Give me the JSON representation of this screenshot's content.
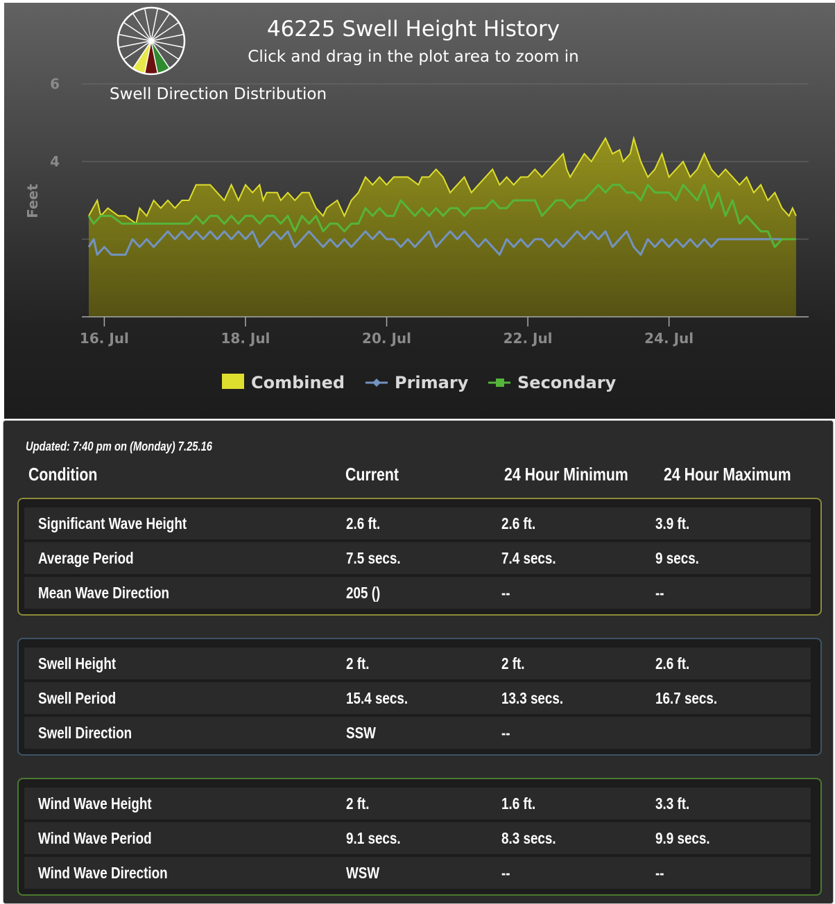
{
  "chart_data": {
    "type": "area",
    "title": "46225 Swell Height History",
    "subtitle": "Click and drag in the plot area to zoom in",
    "ylabel": "Feet",
    "ylim": [
      0,
      6
    ],
    "y_tick_labels": [
      "4",
      "6"
    ],
    "x_tick_labels": [
      "16. Jul",
      "18. Jul",
      "20. Jul",
      "22. Jul",
      "24. Jul"
    ],
    "x_ticks_day": [
      16,
      18,
      20,
      22,
      24
    ],
    "xlim_day": [
      15.78,
      25.88
    ],
    "legend": "bottom-center",
    "grid": true,
    "inset_title": "Swell Direction Distribution",
    "series": [
      {
        "name": "Combined",
        "type": "area",
        "color": "#dede2e",
        "x": [
          15.78,
          15.9,
          15.95,
          16.05,
          16.2,
          16.3,
          16.45,
          16.5,
          16.6,
          16.7,
          16.8,
          16.9,
          17.0,
          17.1,
          17.2,
          17.3,
          17.35,
          17.5,
          17.6,
          17.7,
          17.8,
          17.9,
          18.0,
          18.1,
          18.2,
          18.25,
          18.3,
          18.45,
          18.5,
          18.6,
          18.7,
          18.8,
          18.9,
          19.0,
          19.1,
          19.15,
          19.3,
          19.4,
          19.5,
          19.6,
          19.7,
          19.8,
          19.9,
          20.0,
          20.1,
          20.2,
          20.3,
          20.45,
          20.5,
          20.6,
          20.7,
          20.8,
          20.9,
          21.0,
          21.1,
          21.2,
          21.3,
          21.4,
          21.5,
          21.6,
          21.7,
          21.8,
          21.9,
          22.0,
          22.1,
          22.2,
          22.3,
          22.4,
          22.5,
          22.55,
          22.6,
          22.7,
          22.8,
          22.9,
          23.0,
          23.1,
          23.2,
          23.3,
          23.35,
          23.45,
          23.5,
          23.6,
          23.7,
          23.8,
          23.9,
          24.0,
          24.1,
          24.2,
          24.3,
          24.4,
          24.5,
          24.6,
          24.7,
          24.8,
          24.9,
          25.0,
          25.1,
          25.2,
          25.3,
          25.4,
          25.5,
          25.6,
          25.7,
          25.75,
          25.8
        ],
        "y": [
          2.6,
          3.0,
          2.6,
          2.8,
          2.6,
          2.6,
          2.4,
          2.8,
          2.6,
          3.0,
          2.8,
          3.0,
          2.8,
          3.0,
          3.0,
          3.4,
          3.4,
          3.4,
          3.2,
          3.0,
          3.4,
          3.0,
          3.4,
          3.2,
          3.4,
          3.0,
          3.2,
          3.2,
          3.0,
          3.2,
          3.0,
          3.2,
          3.2,
          2.8,
          2.6,
          2.8,
          3.0,
          2.6,
          3.0,
          3.2,
          3.6,
          3.4,
          3.6,
          3.4,
          3.6,
          3.6,
          3.6,
          3.4,
          3.6,
          3.6,
          3.8,
          3.6,
          3.2,
          3.4,
          3.6,
          3.2,
          3.4,
          3.6,
          3.8,
          3.4,
          3.6,
          3.4,
          3.6,
          3.6,
          3.8,
          3.6,
          3.8,
          4.0,
          4.2,
          3.8,
          3.6,
          3.9,
          4.2,
          4.0,
          4.3,
          4.6,
          4.2,
          4.3,
          4.0,
          4.2,
          4.6,
          4.0,
          3.6,
          3.8,
          4.2,
          3.6,
          3.8,
          4.0,
          3.6,
          3.8,
          4.2,
          3.8,
          3.6,
          3.8,
          3.6,
          3.4,
          3.6,
          3.2,
          3.4,
          3.0,
          3.2,
          2.8,
          2.6,
          2.8,
          2.6
        ]
      },
      {
        "name": "Primary",
        "type": "line",
        "color": "#7393c1",
        "x": [
          15.78,
          15.85,
          15.9,
          16.0,
          16.1,
          16.3,
          16.4,
          16.5,
          16.6,
          16.7,
          16.8,
          16.9,
          17.0,
          17.1,
          17.2,
          17.3,
          17.4,
          17.5,
          17.6,
          17.7,
          17.8,
          17.9,
          18.0,
          18.1,
          18.2,
          18.3,
          18.4,
          18.5,
          18.6,
          18.7,
          18.8,
          18.9,
          19.0,
          19.1,
          19.2,
          19.3,
          19.4,
          19.5,
          19.6,
          19.7,
          19.8,
          19.9,
          20.0,
          20.1,
          20.2,
          20.3,
          20.4,
          20.5,
          20.6,
          20.7,
          20.8,
          20.9,
          21.0,
          21.1,
          21.2,
          21.3,
          21.4,
          21.5,
          21.6,
          21.7,
          21.8,
          21.9,
          22.0,
          22.1,
          22.2,
          22.3,
          22.4,
          22.5,
          22.6,
          22.7,
          22.8,
          22.9,
          23.0,
          23.1,
          23.2,
          23.3,
          23.4,
          23.5,
          23.6,
          23.7,
          23.8,
          23.9,
          24.0,
          24.1,
          24.2,
          24.3,
          24.4,
          24.5,
          24.6,
          24.7,
          24.8,
          24.9,
          25.0,
          25.1,
          25.2,
          25.3,
          25.4,
          25.5,
          25.6,
          25.8
        ],
        "y": [
          1.8,
          2.0,
          1.6,
          1.8,
          1.6,
          1.6,
          2.0,
          1.8,
          2.0,
          1.8,
          2.0,
          2.2,
          2.0,
          2.2,
          2.0,
          2.2,
          2.0,
          2.2,
          2.0,
          2.2,
          2.0,
          2.2,
          2.0,
          2.2,
          1.8,
          2.0,
          2.2,
          2.0,
          2.2,
          1.8,
          2.0,
          2.2,
          2.0,
          1.8,
          2.0,
          1.8,
          2.0,
          1.8,
          2.0,
          2.2,
          2.0,
          2.2,
          2.0,
          2.0,
          1.8,
          2.0,
          1.8,
          2.0,
          2.2,
          1.8,
          2.0,
          2.2,
          2.0,
          2.2,
          2.0,
          1.8,
          2.0,
          1.8,
          1.6,
          2.0,
          1.8,
          2.0,
          1.8,
          2.0,
          2.0,
          1.8,
          2.0,
          1.8,
          2.0,
          2.2,
          2.0,
          2.2,
          2.0,
          2.2,
          1.8,
          2.0,
          2.2,
          1.8,
          1.6,
          2.0,
          1.8,
          2.0,
          1.8,
          2.0,
          1.8,
          2.0,
          1.8,
          2.0,
          1.8,
          2.0,
          2.0,
          2.0,
          2.0,
          2.0,
          2.0,
          2.0,
          2.0,
          2.0,
          2.0,
          2.0
        ]
      },
      {
        "name": "Secondary",
        "type": "line",
        "color": "#55b53a",
        "x": [
          15.78,
          15.85,
          15.95,
          16.1,
          16.25,
          16.4,
          16.5,
          16.8,
          17.0,
          17.1,
          17.2,
          17.3,
          17.4,
          17.5,
          17.6,
          17.7,
          17.8,
          17.9,
          18.0,
          18.1,
          18.2,
          18.3,
          18.4,
          18.5,
          18.6,
          18.7,
          18.8,
          18.9,
          19.0,
          19.1,
          19.2,
          19.3,
          19.4,
          19.5,
          19.6,
          19.7,
          19.8,
          19.9,
          20.0,
          20.1,
          20.2,
          20.3,
          20.4,
          20.5,
          20.6,
          20.7,
          20.8,
          20.9,
          21.0,
          21.1,
          21.2,
          21.3,
          21.4,
          21.5,
          21.6,
          21.7,
          21.8,
          21.9,
          22.0,
          22.1,
          22.2,
          22.3,
          22.4,
          22.5,
          22.6,
          22.7,
          22.8,
          22.9,
          23.0,
          23.1,
          23.2,
          23.3,
          23.4,
          23.5,
          23.6,
          23.7,
          23.8,
          23.9,
          24.0,
          24.1,
          24.2,
          24.3,
          24.4,
          24.5,
          24.6,
          24.7,
          24.8,
          24.9,
          25.0,
          25.1,
          25.2,
          25.3,
          25.4,
          25.5,
          25.6,
          25.8
        ],
        "y": [
          2.6,
          2.4,
          2.6,
          2.6,
          2.4,
          2.4,
          2.4,
          2.4,
          2.4,
          2.4,
          2.4,
          2.6,
          2.4,
          2.6,
          2.6,
          2.4,
          2.6,
          2.4,
          2.6,
          2.6,
          2.4,
          2.6,
          2.6,
          2.4,
          2.6,
          2.2,
          2.6,
          2.4,
          2.6,
          2.2,
          2.4,
          2.4,
          2.2,
          2.4,
          2.4,
          2.8,
          2.6,
          2.8,
          2.6,
          2.6,
          3.0,
          2.8,
          2.6,
          2.8,
          2.6,
          2.8,
          2.6,
          2.8,
          2.8,
          2.6,
          2.8,
          2.8,
          2.8,
          3.0,
          2.8,
          2.8,
          3.0,
          3.0,
          3.0,
          3.0,
          2.6,
          2.8,
          3.0,
          3.0,
          2.8,
          3.0,
          3.0,
          3.2,
          3.4,
          3.2,
          3.4,
          3.4,
          3.2,
          3.2,
          3.0,
          3.4,
          3.2,
          3.2,
          3.2,
          3.0,
          3.4,
          3.2,
          3.0,
          3.4,
          2.8,
          3.2,
          2.6,
          3.0,
          2.4,
          2.6,
          2.4,
          2.2,
          2.2,
          1.8,
          2.0,
          2.0
        ]
      }
    ]
  },
  "direction_wheel": {
    "segments": 16,
    "highlight_colors": [
      "#e8e84a",
      "#6b0f0f",
      "#2e8b2e"
    ]
  },
  "table": {
    "updated": "Updated: 7:40 pm on (Monday) 7.25.16",
    "headers": [
      "Condition",
      "Current",
      "24 Hour Minimum",
      "24 Hour Maximum"
    ],
    "groups": [
      {
        "rows": [
          [
            "Significant Wave Height",
            "2.6 ft.",
            "2.6 ft.",
            "3.9 ft."
          ],
          [
            "Average Period",
            "7.5 secs.",
            "7.4 secs.",
            "9 secs."
          ],
          [
            "Mean Wave Direction",
            "205 ()",
            "--",
            "--"
          ]
        ]
      },
      {
        "rows": [
          [
            "Swell Height",
            "2 ft.",
            "2 ft.",
            "2.6 ft."
          ],
          [
            "Swell Period",
            "15.4 secs.",
            "13.3 secs.",
            "16.7 secs."
          ],
          [
            "Swell Direction",
            "SSW",
            "--",
            ""
          ]
        ]
      },
      {
        "rows": [
          [
            "Wind Wave Height",
            "2 ft.",
            "1.6 ft.",
            "3.3 ft."
          ],
          [
            "Wind Wave Period",
            "9.1 secs.",
            "8.3 secs.",
            "9.9 secs."
          ],
          [
            "Wind Wave Direction",
            "WSW",
            "--",
            "--"
          ]
        ]
      }
    ]
  }
}
